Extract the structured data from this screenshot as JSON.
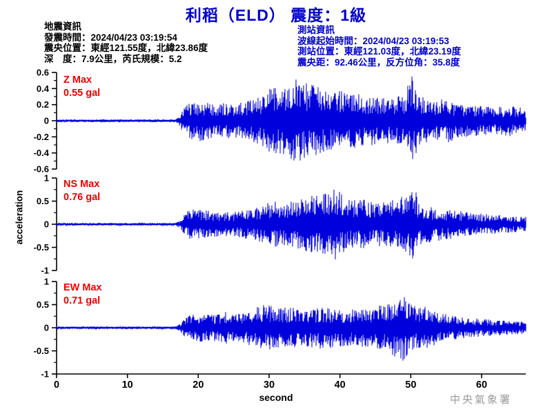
{
  "header": {
    "title": "利稻（ELD） 震度：1級"
  },
  "event_info": {
    "heading": "地震資訊",
    "lines": [
      "發震時間：2024/04/23 03:19:54",
      "震央位置：東經121.55度，北緯23.86度",
      "深　度：7.9公里，芮氏規模：5.2"
    ]
  },
  "station_info": {
    "heading": "測站資訊",
    "lines": [
      "波線起始時間：2024/04/23 03:19:53",
      "測站位置：東經121.03度，北緯23.19度",
      "震央距：92.46公里，反方位角：35.8度"
    ]
  },
  "footer": {
    "agency": "中央氣象署"
  },
  "colors": {
    "title_blue": "#0000cc",
    "info_blue": "#0000cc",
    "trace_blue": "#0000dd",
    "max_red": "#ee0000",
    "axis_black": "#000000",
    "agency_gray": "#9a9a9a"
  },
  "chart_data": {
    "type": "line",
    "title": "利稻（ELD） 震度：1級",
    "xlabel": "second",
    "ylabel": "acceleration",
    "xlim": [
      0,
      66.2
    ],
    "xticks": [
      0,
      10,
      20,
      30,
      40,
      50,
      60
    ],
    "grid": false,
    "channels": [
      {
        "name": "Z",
        "max_label": "Z Max",
        "max_value_label": "0.55 gal",
        "max_gal": 0.55,
        "ylim": [
          -0.6,
          0.6
        ],
        "yticks": [
          0.6,
          0.4,
          0.2,
          0,
          -0.2,
          -0.4,
          -0.6
        ],
        "minor_step": 0.1,
        "seed": 101,
        "envelope": {
          "t": [
            0,
            16.8,
            17.3,
            18.5,
            20,
            23,
            26,
            28,
            30,
            32,
            34,
            35,
            37,
            39,
            41,
            43,
            45,
            47,
            49,
            50.2,
            51,
            53,
            55,
            57,
            59,
            62,
            64,
            66.2
          ],
          "a": [
            0.015,
            0.015,
            0.06,
            0.22,
            0.24,
            0.2,
            0.22,
            0.26,
            0.38,
            0.4,
            0.5,
            0.44,
            0.4,
            0.34,
            0.36,
            0.3,
            0.28,
            0.26,
            0.3,
            0.55,
            0.3,
            0.24,
            0.26,
            0.2,
            0.18,
            0.16,
            0.18,
            0.14
          ]
        }
      },
      {
        "name": "NS",
        "max_label": "NS Max",
        "max_value_label": "0.76 gal",
        "max_gal": 0.76,
        "ylim": [
          -1,
          1
        ],
        "yticks": [
          1,
          0.5,
          0,
          -0.5,
          -1
        ],
        "minor_step": 0.25,
        "seed": 202,
        "envelope": {
          "t": [
            0,
            16.8,
            17.3,
            18.5,
            20,
            22,
            24,
            26,
            28,
            30,
            32,
            34,
            36,
            38,
            39.5,
            41,
            43,
            45,
            47,
            48.5,
            50.3,
            51.5,
            53,
            55,
            57,
            59,
            61,
            63,
            66.2
          ],
          "a": [
            0.02,
            0.02,
            0.07,
            0.28,
            0.3,
            0.26,
            0.24,
            0.26,
            0.34,
            0.46,
            0.42,
            0.5,
            0.56,
            0.62,
            0.7,
            0.48,
            0.5,
            0.42,
            0.46,
            0.52,
            0.76,
            0.4,
            0.34,
            0.3,
            0.26,
            0.22,
            0.2,
            0.17,
            0.15
          ]
        }
      },
      {
        "name": "EW",
        "max_label": "EW Max",
        "max_value_label": "0.71 gal",
        "max_gal": 0.71,
        "ylim": [
          -1,
          1
        ],
        "yticks": [
          1,
          0.5,
          0,
          -0.5,
          -1
        ],
        "minor_step": 0.25,
        "seed": 303,
        "envelope": {
          "t": [
            0,
            16.8,
            17.3,
            18.5,
            20,
            22,
            24,
            26,
            28,
            29.5,
            31,
            33,
            35,
            37,
            39,
            41,
            43,
            45,
            47,
            48.8,
            50,
            52,
            54,
            56,
            58,
            60,
            63,
            66.2
          ],
          "a": [
            0.02,
            0.02,
            0.07,
            0.24,
            0.28,
            0.26,
            0.32,
            0.28,
            0.4,
            0.48,
            0.4,
            0.42,
            0.38,
            0.42,
            0.4,
            0.36,
            0.38,
            0.42,
            0.5,
            0.71,
            0.46,
            0.42,
            0.32,
            0.24,
            0.2,
            0.18,
            0.15,
            0.12
          ]
        }
      }
    ]
  }
}
